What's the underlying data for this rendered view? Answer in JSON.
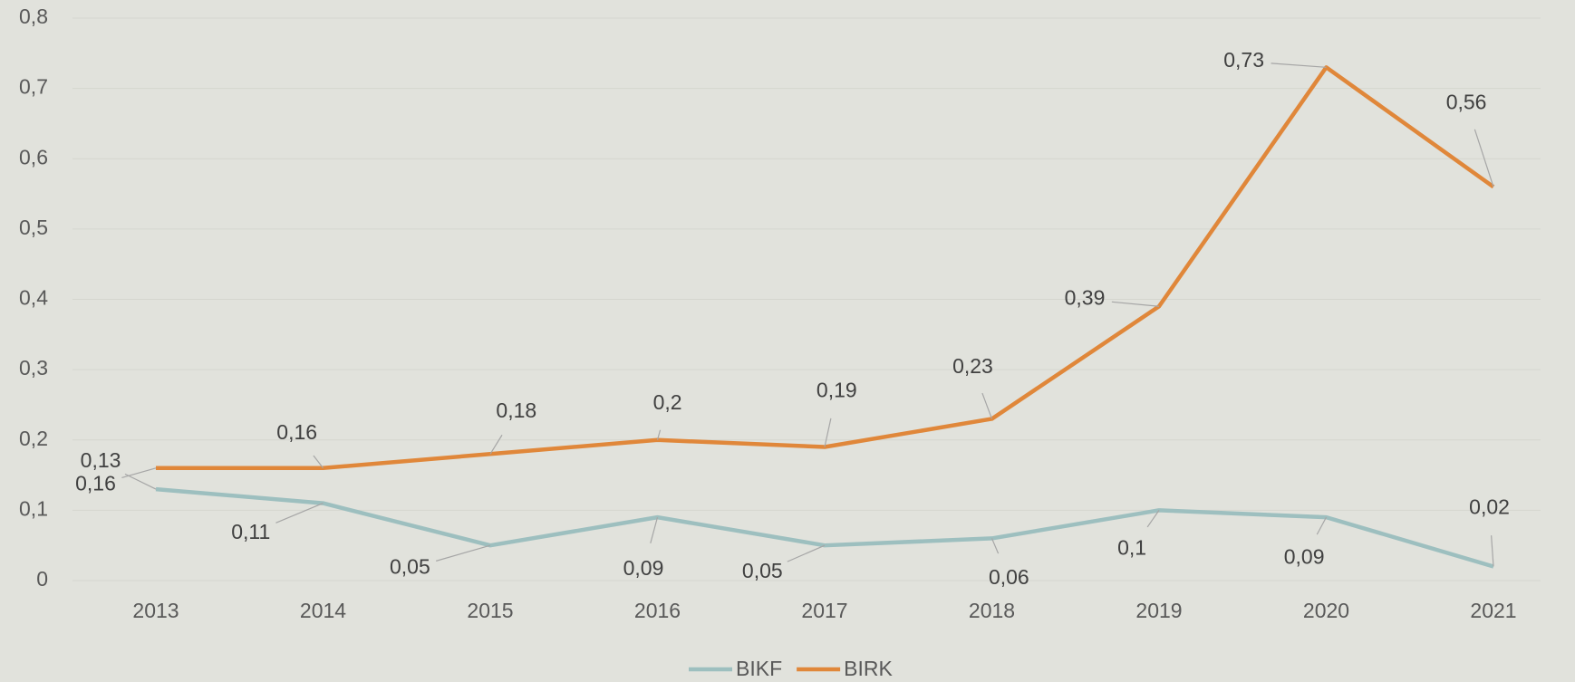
{
  "chart_data": {
    "type": "line",
    "categories": [
      "2013",
      "2014",
      "2015",
      "2016",
      "2017",
      "2018",
      "2019",
      "2020",
      "2021"
    ],
    "series": [
      {
        "name": "BIKF",
        "color": "#9dbfbf",
        "values": [
          0.13,
          0.11,
          0.05,
          0.09,
          0.05,
          0.06,
          0.1,
          0.09,
          0.02
        ],
        "value_labels": [
          "0,13",
          "0,11",
          "0,05",
          "0,09",
          "0,05",
          "0,06",
          "0,1",
          "0,09",
          "0,02"
        ]
      },
      {
        "name": "BIRK",
        "color": "#e0873a",
        "values": [
          0.16,
          0.16,
          0.18,
          0.2,
          0.19,
          0.23,
          0.39,
          0.73,
          0.56
        ],
        "value_labels": [
          "0,16",
          "0,16",
          "0,18",
          "0,2",
          "0,19",
          "0,23",
          "0,39",
          "0,73",
          "0,56"
        ]
      }
    ],
    "ylim": [
      0,
      0.8
    ],
    "yticks": [
      0,
      {
        "value": 0.1,
        "label": "0,1"
      },
      {
        "value": 0.2,
        "label": "0,2"
      },
      {
        "value": 0.3,
        "label": "0,3"
      },
      {
        "value": 0.4,
        "label": "0,4"
      },
      {
        "value": 0.5,
        "label": "0,5"
      },
      {
        "value": 0.6,
        "label": "0,6"
      },
      {
        "value": 0.7,
        "label": "0,7"
      },
      {
        "value": 0.8,
        "label": "0,8"
      }
    ],
    "grid": true,
    "legend": "bottom"
  }
}
